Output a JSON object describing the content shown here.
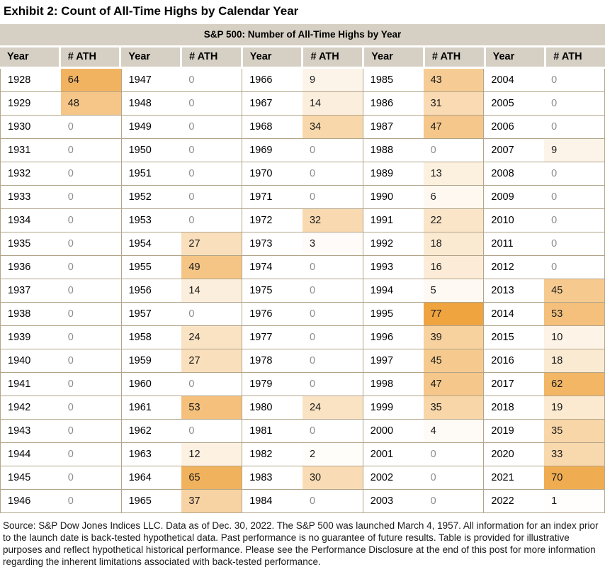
{
  "page_title": "Exhibit 2: Count of All-Time Highs by Calendar Year",
  "table": {
    "title": "S&P 500: Number of All-Time Highs by Year",
    "col_headers": {
      "year": "Year",
      "ath": "# ATH"
    },
    "column_groups": 5,
    "rows_per_group": 19
  },
  "colors": {
    "band_bg": "#D6D0C4",
    "grid_line": "#B2A58A",
    "zero_text": "#8C8C8C",
    "value_text": "#1A1A1A",
    "heat_min": "#FFFFFF",
    "heat_max": "#EFA440"
  },
  "chart_data": {
    "type": "table",
    "title": "S&P 500: Number of All-Time Highs by Year",
    "columns": [
      "Year",
      "# ATH"
    ],
    "heat_scale": {
      "min_value": 0,
      "max_value": 77,
      "min_color": "#FFFFFF",
      "max_color": "#EFA440"
    },
    "records": [
      [
        1928,
        64
      ],
      [
        1929,
        48
      ],
      [
        1930,
        0
      ],
      [
        1931,
        0
      ],
      [
        1932,
        0
      ],
      [
        1933,
        0
      ],
      [
        1934,
        0
      ],
      [
        1935,
        0
      ],
      [
        1936,
        0
      ],
      [
        1937,
        0
      ],
      [
        1938,
        0
      ],
      [
        1939,
        0
      ],
      [
        1940,
        0
      ],
      [
        1941,
        0
      ],
      [
        1942,
        0
      ],
      [
        1943,
        0
      ],
      [
        1944,
        0
      ],
      [
        1945,
        0
      ],
      [
        1946,
        0
      ],
      [
        1947,
        0
      ],
      [
        1948,
        0
      ],
      [
        1949,
        0
      ],
      [
        1950,
        0
      ],
      [
        1951,
        0
      ],
      [
        1952,
        0
      ],
      [
        1953,
        0
      ],
      [
        1954,
        27
      ],
      [
        1955,
        49
      ],
      [
        1956,
        14
      ],
      [
        1957,
        0
      ],
      [
        1958,
        24
      ],
      [
        1959,
        27
      ],
      [
        1960,
        0
      ],
      [
        1961,
        53
      ],
      [
        1962,
        0
      ],
      [
        1963,
        12
      ],
      [
        1964,
        65
      ],
      [
        1965,
        37
      ],
      [
        1966,
        9
      ],
      [
        1967,
        14
      ],
      [
        1968,
        34
      ],
      [
        1969,
        0
      ],
      [
        1970,
        0
      ],
      [
        1971,
        0
      ],
      [
        1972,
        32
      ],
      [
        1973,
        3
      ],
      [
        1974,
        0
      ],
      [
        1975,
        0
      ],
      [
        1976,
        0
      ],
      [
        1977,
        0
      ],
      [
        1978,
        0
      ],
      [
        1979,
        0
      ],
      [
        1980,
        24
      ],
      [
        1981,
        0
      ],
      [
        1982,
        2
      ],
      [
        1983,
        30
      ],
      [
        1984,
        0
      ],
      [
        1985,
        43
      ],
      [
        1986,
        31
      ],
      [
        1987,
        47
      ],
      [
        1988,
        0
      ],
      [
        1989,
        13
      ],
      [
        1990,
        6
      ],
      [
        1991,
        22
      ],
      [
        1992,
        18
      ],
      [
        1993,
        16
      ],
      [
        1994,
        5
      ],
      [
        1995,
        77
      ],
      [
        1996,
        39
      ],
      [
        1997,
        45
      ],
      [
        1998,
        47
      ],
      [
        1999,
        35
      ],
      [
        2000,
        4
      ],
      [
        2001,
        0
      ],
      [
        2002,
        0
      ],
      [
        2003,
        0
      ],
      [
        2004,
        0
      ],
      [
        2005,
        0
      ],
      [
        2006,
        0
      ],
      [
        2007,
        9
      ],
      [
        2008,
        0
      ],
      [
        2009,
        0
      ],
      [
        2010,
        0
      ],
      [
        2011,
        0
      ],
      [
        2012,
        0
      ],
      [
        2013,
        45
      ],
      [
        2014,
        53
      ],
      [
        2015,
        10
      ],
      [
        2016,
        18
      ],
      [
        2017,
        62
      ],
      [
        2018,
        19
      ],
      [
        2019,
        35
      ],
      [
        2020,
        33
      ],
      [
        2021,
        70
      ],
      [
        2022,
        1
      ]
    ]
  },
  "footer": {
    "source_note": "Source: S&P Dow Jones Indices LLC. Data as of Dec. 30, 2022.  The S&P 500 was launched March 4, 1957. All information for an index prior to the launch date is back-tested hypothetical data. Past performance is no guarantee of future results. Table is provided for illustrative purposes and reflect hypothetical historical performance. Please see the Performance Disclosure at the end of this post for more information regarding the inherent limitations associated with back-tested performance."
  }
}
